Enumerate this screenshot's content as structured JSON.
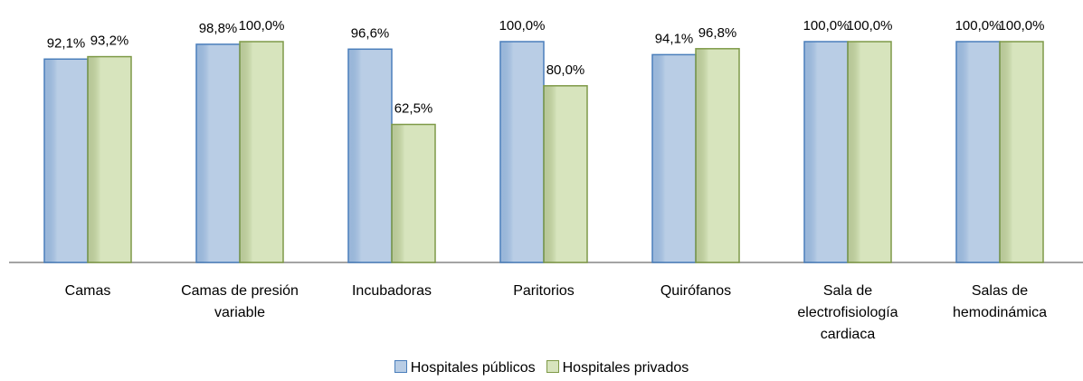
{
  "chart_data": {
    "type": "bar",
    "categories": [
      "Camas",
      "Camas de presión variable",
      "Incubadoras",
      "Paritorios",
      "Quirófanos",
      "Sala de electrofisiología cardiaca",
      "Salas de hemodinámica"
    ],
    "series": [
      {
        "name": "Hospitales públicos",
        "color": "#b9cde5",
        "stroke": "#4a7ebb",
        "values": [
          92.1,
          98.8,
          96.6,
          100,
          94.1,
          100,
          100
        ],
        "value_labels": [
          "92,1%",
          "98,8%",
          "96,6%",
          "100,0%",
          "94,1%",
          "100,0%",
          "100,0%"
        ]
      },
      {
        "name": "Hospitales privados",
        "color": "#d7e4bd",
        "stroke": "#7f9a48",
        "values": [
          93.2,
          100,
          62.5,
          80,
          96.8,
          100,
          100
        ],
        "value_labels": [
          "93,2%",
          "100,0%",
          "62,5%",
          "80,0%",
          "96,8%",
          "100,0%",
          "100,0%"
        ]
      }
    ],
    "ylim": [
      0,
      100
    ],
    "legend": "bottom"
  }
}
